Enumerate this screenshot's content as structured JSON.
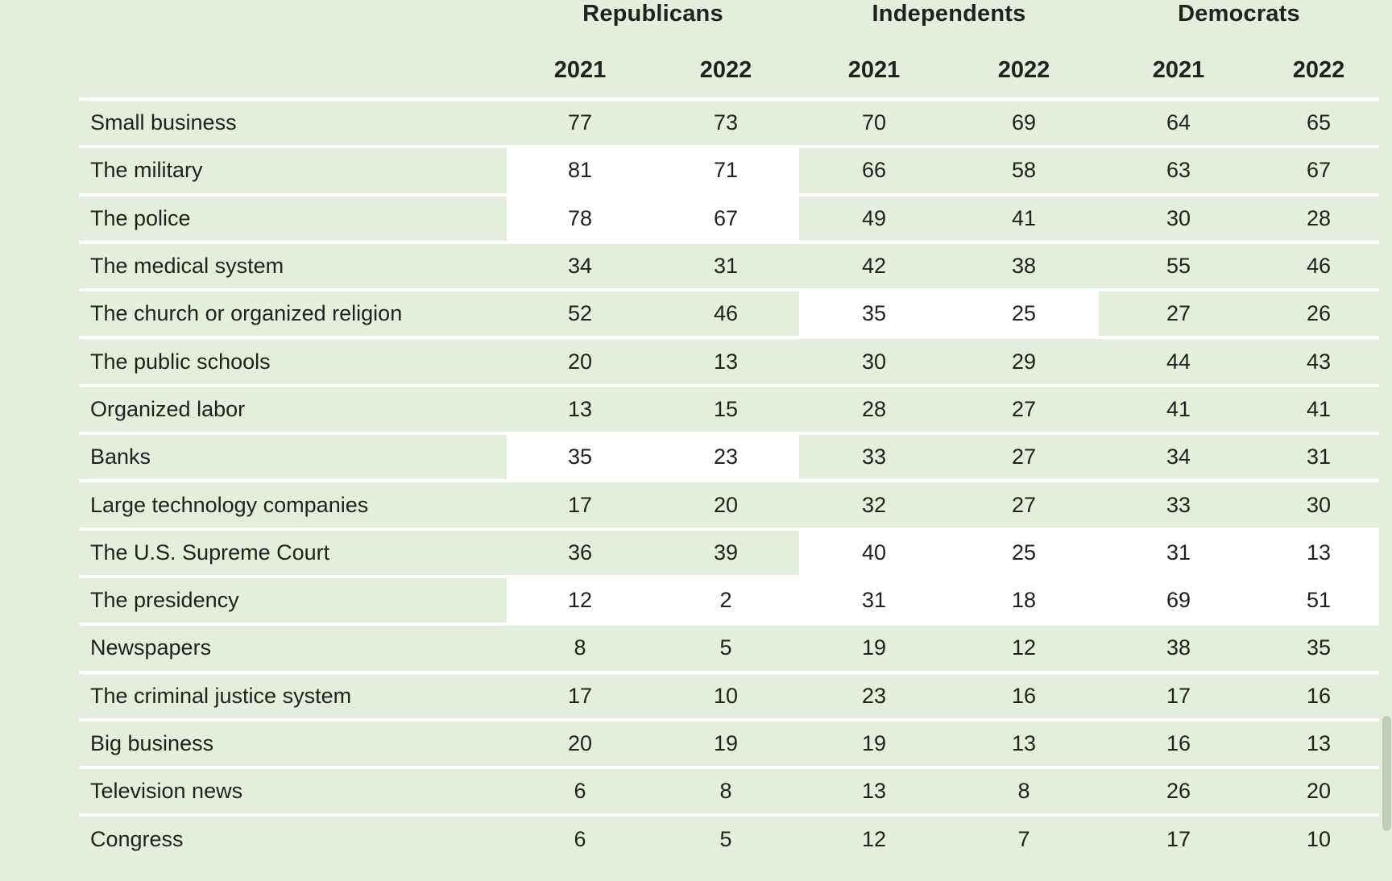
{
  "colors": {
    "background": "#e3eedc",
    "highlight": "#ffffff",
    "separator": "#ffffff",
    "text": "#212121"
  },
  "header": {
    "groups": [
      {
        "label": "Republicans"
      },
      {
        "label": "Independents"
      },
      {
        "label": "Democrats"
      }
    ],
    "years": [
      "2021",
      "2022",
      "2021",
      "2022",
      "2021",
      "2022"
    ]
  },
  "chart_data": {
    "type": "table",
    "title": "",
    "column_groups": [
      "Republicans",
      "Independents",
      "Democrats"
    ],
    "columns": [
      "Republicans 2021",
      "Republicans 2022",
      "Independents 2021",
      "Independents 2022",
      "Democrats 2021",
      "Democrats 2022"
    ],
    "rows": [
      {
        "label": "Small business",
        "values": [
          77,
          73,
          70,
          69,
          64,
          65
        ],
        "highlighted_groups": []
      },
      {
        "label": "The military",
        "values": [
          81,
          71,
          66,
          58,
          63,
          67
        ],
        "highlighted_groups": [
          "Republicans"
        ]
      },
      {
        "label": "The police",
        "values": [
          78,
          67,
          49,
          41,
          30,
          28
        ],
        "highlighted_groups": [
          "Republicans"
        ]
      },
      {
        "label": "The medical system",
        "values": [
          34,
          31,
          42,
          38,
          55,
          46
        ],
        "highlighted_groups": []
      },
      {
        "label": "The church or organized religion",
        "values": [
          52,
          46,
          35,
          25,
          27,
          26
        ],
        "highlighted_groups": [
          "Independents"
        ]
      },
      {
        "label": "The public schools",
        "values": [
          20,
          13,
          30,
          29,
          44,
          43
        ],
        "highlighted_groups": []
      },
      {
        "label": "Organized labor",
        "values": [
          13,
          15,
          28,
          27,
          41,
          41
        ],
        "highlighted_groups": []
      },
      {
        "label": "Banks",
        "values": [
          35,
          23,
          33,
          27,
          34,
          31
        ],
        "highlighted_groups": [
          "Republicans"
        ]
      },
      {
        "label": "Large technology companies",
        "values": [
          17,
          20,
          32,
          27,
          33,
          30
        ],
        "highlighted_groups": []
      },
      {
        "label": "The U.S. Supreme Court",
        "values": [
          36,
          39,
          40,
          25,
          31,
          13
        ],
        "highlighted_groups": [
          "Independents",
          "Democrats"
        ]
      },
      {
        "label": "The presidency",
        "values": [
          12,
          2,
          31,
          18,
          69,
          51
        ],
        "highlighted_groups": [
          "Republicans",
          "Independents",
          "Democrats"
        ]
      },
      {
        "label": "Newspapers",
        "values": [
          8,
          5,
          19,
          12,
          38,
          35
        ],
        "highlighted_groups": []
      },
      {
        "label": "The criminal justice system",
        "values": [
          17,
          10,
          23,
          16,
          17,
          16
        ],
        "highlighted_groups": []
      },
      {
        "label": "Big business",
        "values": [
          20,
          19,
          19,
          13,
          16,
          13
        ],
        "highlighted_groups": []
      },
      {
        "label": "Television news",
        "values": [
          6,
          8,
          13,
          8,
          26,
          20
        ],
        "highlighted_groups": []
      },
      {
        "label": "Congress",
        "values": [
          6,
          5,
          12,
          7,
          17,
          10
        ],
        "highlighted_groups": []
      }
    ]
  }
}
